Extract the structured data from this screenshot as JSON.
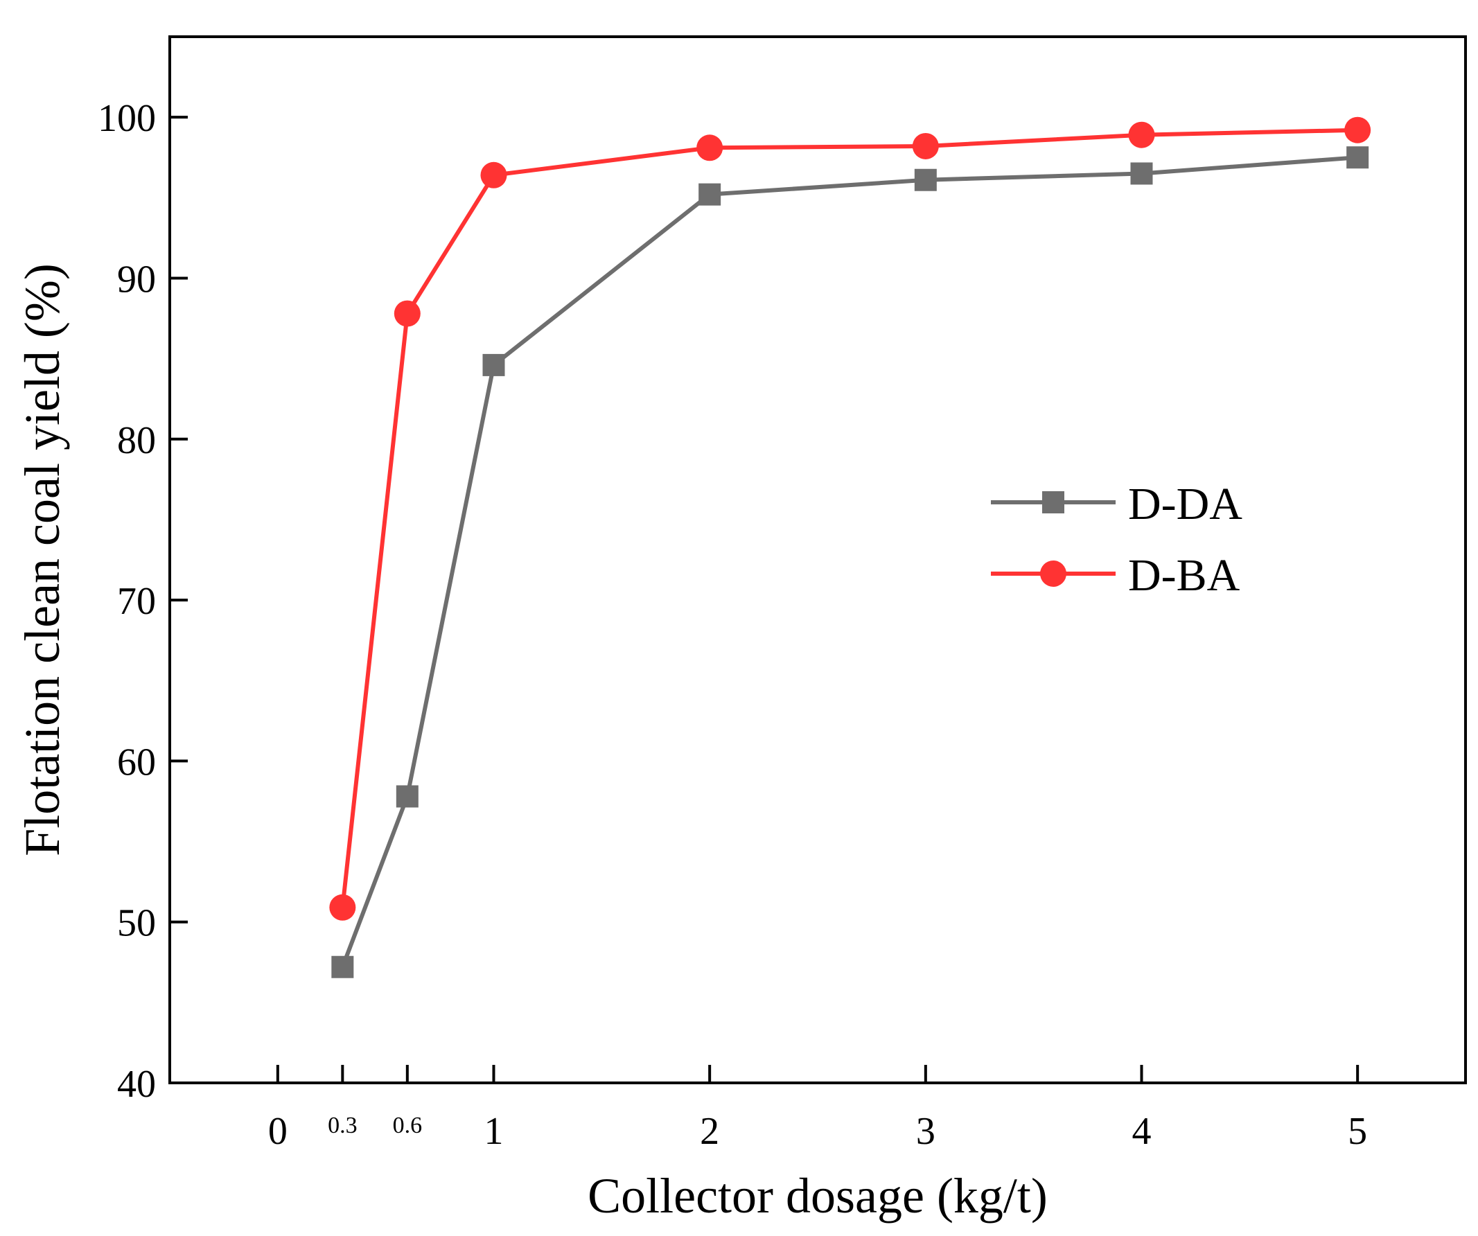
{
  "chart_data": {
    "type": "line",
    "title": "",
    "xlabel": "Collector dosage (kg/t)",
    "ylabel": "Flotation clean coal yield (%)",
    "xlim": [
      -0.5,
      5.5
    ],
    "ylim": [
      40,
      105
    ],
    "x_ticks": [
      {
        "value": 0,
        "label": "0",
        "small": false
      },
      {
        "value": 0.3,
        "label": "0.3",
        "small": true
      },
      {
        "value": 0.6,
        "label": "0.6",
        "small": true
      },
      {
        "value": 1,
        "label": "1",
        "small": false
      },
      {
        "value": 2,
        "label": "2",
        "small": false
      },
      {
        "value": 3,
        "label": "3",
        "small": false
      },
      {
        "value": 4,
        "label": "4",
        "small": false
      },
      {
        "value": 5,
        "label": "5",
        "small": false
      }
    ],
    "y_ticks": [
      {
        "value": 40,
        "label": "40"
      },
      {
        "value": 50,
        "label": "50"
      },
      {
        "value": 60,
        "label": "60"
      },
      {
        "value": 70,
        "label": "70"
      },
      {
        "value": 80,
        "label": "80"
      },
      {
        "value": 90,
        "label": "90"
      },
      {
        "value": 100,
        "label": "100"
      }
    ],
    "grid": false,
    "legend_position": "center-right",
    "series": [
      {
        "name": "D-DA",
        "color": "#6e6e6e",
        "marker": "square",
        "x": [
          0.3,
          0.6,
          1,
          2,
          3,
          4,
          5
        ],
        "values": [
          47.2,
          57.8,
          84.6,
          95.2,
          96.1,
          96.5,
          97.5
        ]
      },
      {
        "name": "D-BA",
        "color": "#ff3333",
        "marker": "circle",
        "x": [
          0.3,
          0.6,
          1,
          2,
          3,
          4,
          5
        ],
        "values": [
          50.9,
          87.8,
          96.4,
          98.1,
          98.2,
          98.9,
          99.2
        ]
      }
    ]
  }
}
